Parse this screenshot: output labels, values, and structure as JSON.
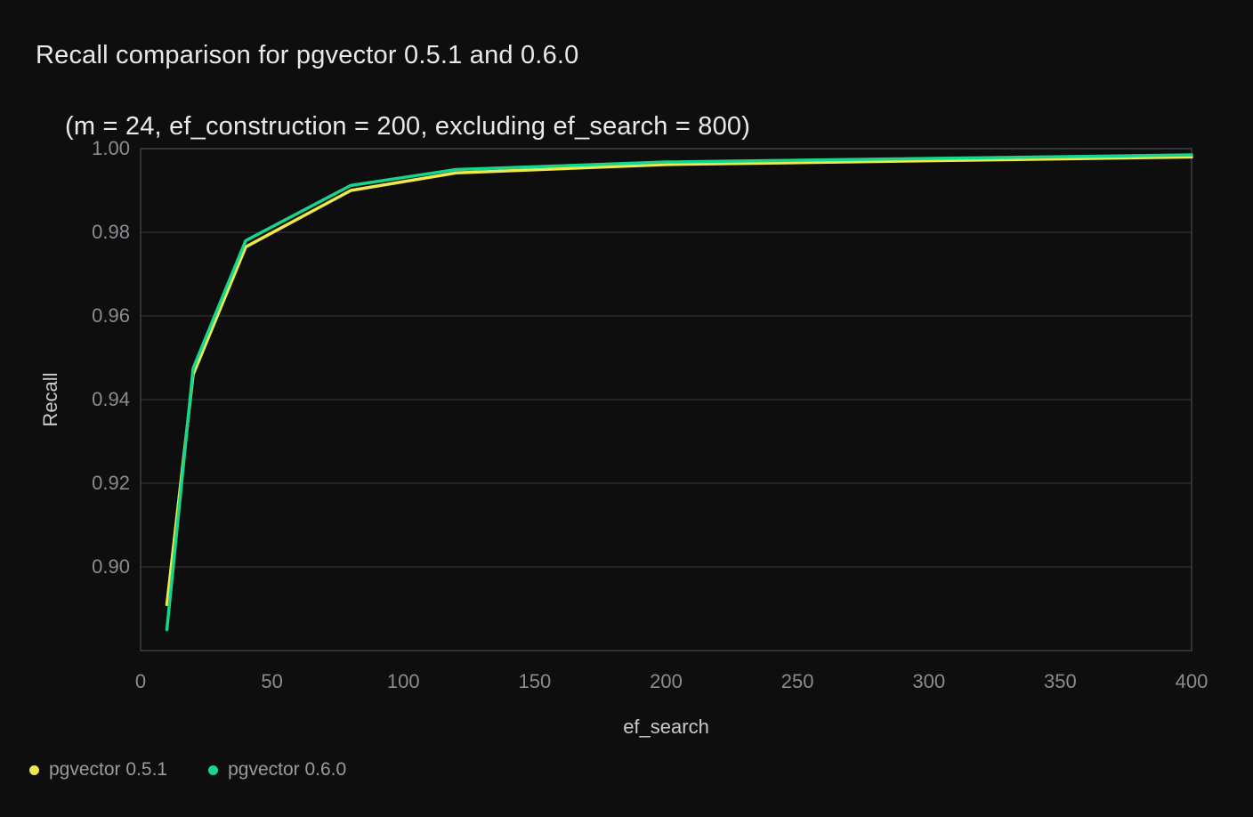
{
  "title": {
    "line1": "Recall comparison for pgvector 0.5.1 and 0.6.0",
    "line2": "(m = 24, ef_construction = 200, excluding ef_search = 800)"
  },
  "colors": {
    "background": "#0e0e0e",
    "title_text": "#e9e9ec",
    "tick_text": "#8b8b92",
    "axis_title_text": "#c9c9cf",
    "legend_text": "#9a9aa1",
    "gridline": "#2a2a2f",
    "plot_border": "#3d3d43",
    "series_pgvector_051": "#ece84d",
    "series_pgvector_060": "#15d68a"
  },
  "chart_data": {
    "type": "line",
    "title": "Recall comparison for pgvector 0.5.1 and 0.6.0",
    "subtitle": "(m = 24, ef_construction = 200, excluding ef_search = 800)",
    "xlabel": "ef_search",
    "ylabel": "Recall",
    "x": [
      10,
      20,
      40,
      80,
      120,
      200,
      400
    ],
    "series": [
      {
        "name": "pgvector 0.5.1",
        "color": "#ece84d",
        "values": [
          0.891,
          0.946,
          0.9765,
          0.99,
          0.9942,
          0.9962,
          0.998
        ]
      },
      {
        "name": "pgvector 0.6.0",
        "color": "#15d68a",
        "values": [
          0.885,
          0.9475,
          0.978,
          0.9912,
          0.995,
          0.9968,
          0.9985
        ]
      }
    ],
    "xlim": [
      0,
      400
    ],
    "ylim": [
      0.88,
      1.0
    ],
    "x_ticks": [
      0,
      50,
      100,
      150,
      200,
      250,
      300,
      350,
      400
    ],
    "y_ticks": [
      0.9,
      0.92,
      0.94,
      0.96,
      0.98,
      1.0
    ],
    "grid": "horizontal",
    "legend_position": "bottom-left"
  },
  "legend": {
    "items": [
      {
        "label": "pgvector 0.5.1",
        "color": "#ece84d"
      },
      {
        "label": "pgvector 0.6.0",
        "color": "#15d68a"
      }
    ]
  }
}
